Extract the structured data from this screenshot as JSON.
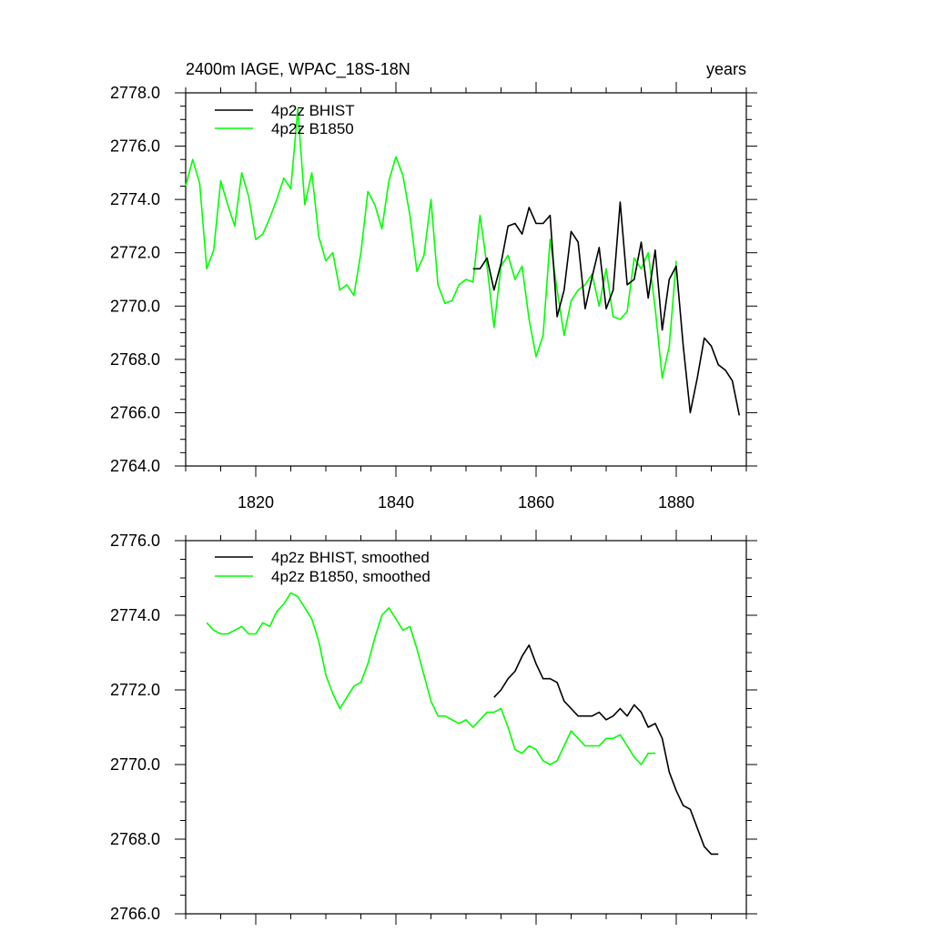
{
  "colors": {
    "bhist": "#000000",
    "b1850": "#00ff00"
  },
  "chart_data": [
    {
      "type": "line",
      "title_left": "2400m IAGE, WPAC_18S-18N",
      "title_right": "years",
      "xlim": [
        1810,
        1890
      ],
      "ylim": [
        2764,
        2778
      ],
      "x_ticks": [
        1820,
        1840,
        1860,
        1880
      ],
      "x_tick_labels": [
        "1820",
        "1840",
        "1860",
        "1880"
      ],
      "y_ticks": [
        2764,
        2766,
        2768,
        2770,
        2772,
        2774,
        2776,
        2778
      ],
      "y_tick_labels": [
        "2764.0",
        "2766.0",
        "2768.0",
        "2770.0",
        "2772.0",
        "2774.0",
        "2776.0",
        "2778.0"
      ],
      "series": [
        {
          "name": "4p2z BHIST",
          "color": "#000000",
          "x": [
            1851,
            1852,
            1853,
            1854,
            1855,
            1856,
            1857,
            1858,
            1859,
            1860,
            1861,
            1862,
            1863,
            1864,
            1865,
            1866,
            1867,
            1868,
            1869,
            1870,
            1871,
            1872,
            1873,
            1874,
            1875,
            1876,
            1877,
            1878,
            1879,
            1880,
            1881,
            1882,
            1883,
            1884,
            1885,
            1886,
            1887,
            1888,
            1889
          ],
          "values": [
            2771.4,
            2771.4,
            2771.8,
            2770.6,
            2771.6,
            2773.0,
            2773.1,
            2772.7,
            2773.7,
            2773.1,
            2773.1,
            2773.4,
            2769.6,
            2770.6,
            2772.8,
            2772.4,
            2769.9,
            2771.1,
            2772.2,
            2769.9,
            2770.6,
            2773.9,
            2770.8,
            2771.0,
            2772.4,
            2770.3,
            2772.1,
            2769.1,
            2771.0,
            2771.5,
            2768.5,
            2766.0,
            2767.3,
            2768.8,
            2768.5,
            2767.8,
            2767.6,
            2767.2,
            2765.9
          ]
        },
        {
          "name": "4p2z B1850",
          "color": "#00ff00",
          "x": [
            1810,
            1811,
            1812,
            1813,
            1814,
            1815,
            1816,
            1817,
            1818,
            1819,
            1820,
            1821,
            1822,
            1823,
            1824,
            1825,
            1826,
            1827,
            1828,
            1829,
            1830,
            1831,
            1832,
            1833,
            1834,
            1835,
            1836,
            1837,
            1838,
            1839,
            1840,
            1841,
            1842,
            1843,
            1844,
            1845,
            1846,
            1847,
            1848,
            1849,
            1850,
            1851,
            1852,
            1853,
            1854,
            1855,
            1856,
            1857,
            1858,
            1859,
            1860,
            1861,
            1862,
            1863,
            1864,
            1865,
            1866,
            1867,
            1868,
            1869,
            1870,
            1871,
            1872,
            1873,
            1874,
            1875,
            1876,
            1877,
            1878,
            1879,
            1880
          ],
          "values": [
            2774.5,
            2775.5,
            2774.6,
            2771.4,
            2772.1,
            2774.7,
            2773.8,
            2773.0,
            2775.0,
            2774.1,
            2772.5,
            2772.7,
            2773.3,
            2774.0,
            2774.8,
            2774.4,
            2777.4,
            2773.8,
            2775.0,
            2772.6,
            2771.7,
            2772.0,
            2770.6,
            2770.8,
            2770.4,
            2772.0,
            2774.3,
            2773.8,
            2772.9,
            2774.7,
            2775.6,
            2774.9,
            2773.4,
            2771.3,
            2771.9,
            2774.0,
            2770.8,
            2770.1,
            2770.2,
            2770.8,
            2771.0,
            2770.9,
            2773.4,
            2771.5,
            2769.2,
            2771.5,
            2771.9,
            2771.0,
            2771.5,
            2769.5,
            2768.1,
            2768.9,
            2772.5,
            2770.6,
            2768.9,
            2770.2,
            2770.6,
            2770.8,
            2771.2,
            2770.0,
            2771.4,
            2769.6,
            2769.5,
            2769.8,
            2771.8,
            2771.4,
            2772.0,
            2769.9,
            2767.3,
            2768.5,
            2771.7
          ]
        }
      ]
    },
    {
      "type": "line",
      "xlim": [
        1810,
        1890
      ],
      "ylim": [
        2766,
        2776
      ],
      "x_ticks": [
        1820,
        1840,
        1860,
        1880
      ],
      "y_ticks": [
        2766,
        2768,
        2770,
        2772,
        2774,
        2776
      ],
      "y_tick_labels": [
        "2766.0",
        "2768.0",
        "2770.0",
        "2772.0",
        "2774.0",
        "2776.0"
      ],
      "series": [
        {
          "name": "4p2z BHIST, smoothed",
          "color": "#000000",
          "x": [
            1854,
            1855,
            1856,
            1857,
            1858,
            1859,
            1860,
            1861,
            1862,
            1863,
            1864,
            1865,
            1866,
            1867,
            1868,
            1869,
            1870,
            1871,
            1872,
            1873,
            1874,
            1875,
            1876,
            1877,
            1878,
            1879,
            1880,
            1881,
            1882,
            1883,
            1884,
            1885,
            1886
          ],
          "values": [
            2771.8,
            2772.0,
            2772.3,
            2772.5,
            2772.9,
            2773.2,
            2772.7,
            2772.3,
            2772.3,
            2772.2,
            2771.7,
            2771.5,
            2771.3,
            2771.3,
            2771.3,
            2771.4,
            2771.2,
            2771.3,
            2771.5,
            2771.3,
            2771.6,
            2771.4,
            2771.0,
            2771.1,
            2770.7,
            2769.8,
            2769.3,
            2768.9,
            2768.8,
            2768.3,
            2767.8,
            2767.6,
            2767.6
          ]
        },
        {
          "name": "4p2z B1850, smoothed",
          "color": "#00ff00",
          "x": [
            1813,
            1814,
            1815,
            1816,
            1817,
            1818,
            1819,
            1820,
            1821,
            1822,
            1823,
            1824,
            1825,
            1826,
            1827,
            1828,
            1829,
            1830,
            1831,
            1832,
            1833,
            1834,
            1835,
            1836,
            1837,
            1838,
            1839,
            1840,
            1841,
            1842,
            1843,
            1844,
            1845,
            1846,
            1847,
            1848,
            1849,
            1850,
            1851,
            1852,
            1853,
            1854,
            1855,
            1856,
            1857,
            1858,
            1859,
            1860,
            1861,
            1862,
            1863,
            1864,
            1865,
            1866,
            1867,
            1868,
            1869,
            1870,
            1871,
            1872,
            1873,
            1874,
            1875,
            1876,
            1877
          ],
          "values": [
            2773.8,
            2773.6,
            2773.5,
            2773.5,
            2773.6,
            2773.7,
            2773.5,
            2773.5,
            2773.8,
            2773.7,
            2774.1,
            2774.3,
            2774.6,
            2774.5,
            2774.2,
            2773.9,
            2773.3,
            2772.4,
            2771.9,
            2771.5,
            2771.8,
            2772.1,
            2772.2,
            2772.7,
            2773.4,
            2774.0,
            2774.2,
            2773.9,
            2773.6,
            2773.7,
            2773.1,
            2772.4,
            2771.7,
            2771.3,
            2771.3,
            2771.2,
            2771.1,
            2771.2,
            2771.0,
            2771.2,
            2771.4,
            2771.4,
            2771.5,
            2771.0,
            2770.4,
            2770.3,
            2770.5,
            2770.4,
            2770.1,
            2770.0,
            2770.1,
            2770.5,
            2770.9,
            2770.7,
            2770.5,
            2770.5,
            2770.5,
            2770.7,
            2770.7,
            2770.8,
            2770.5,
            2770.2,
            2770.0,
            2770.3,
            2770.3
          ]
        }
      ]
    }
  ]
}
